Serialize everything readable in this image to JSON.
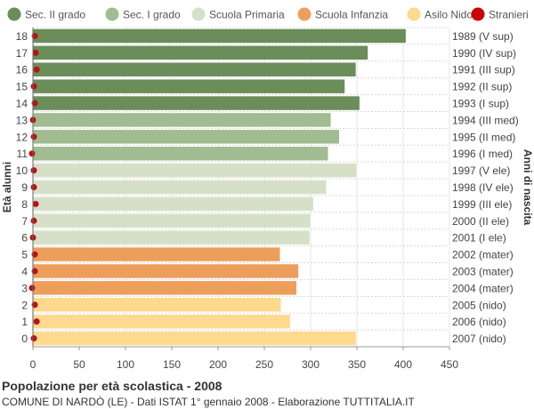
{
  "chart_data": {
    "type": "bar",
    "orientation": "horizontal",
    "categories": [
      "18",
      "17",
      "16",
      "15",
      "14",
      "13",
      "12",
      "11",
      "10",
      "9",
      "8",
      "7",
      "6",
      "5",
      "4",
      "3",
      "2",
      "1",
      "0"
    ],
    "birth_years": [
      "1989 (V sup)",
      "1990 (IV sup)",
      "1991 (III sup)",
      "1992 (II sup)",
      "1993 (I sup)",
      "1994 (III med)",
      "1995 (II med)",
      "1996 (I med)",
      "1997 (V ele)",
      "1998 (IV ele)",
      "1999 (III ele)",
      "2000 (II ele)",
      "2001 (I ele)",
      "2002 (mater)",
      "2003 (mater)",
      "2004 (mater)",
      "2005 (nido)",
      "2006 (nido)",
      "2007 (nido)"
    ],
    "values": [
      403,
      362,
      349,
      337,
      353,
      322,
      331,
      319,
      350,
      317,
      303,
      300,
      299,
      267,
      287,
      285,
      268,
      278,
      349
    ],
    "stranieri": [
      2,
      3,
      4,
      1,
      2,
      0,
      1,
      -1,
      1,
      1,
      3,
      1,
      0,
      2,
      2,
      -1,
      2,
      4,
      1
    ],
    "bar_groups": [
      "Sec. II grado",
      "Sec. II grado",
      "Sec. II grado",
      "Sec. II grado",
      "Sec. II grado",
      "Sec. I grado",
      "Sec. I grado",
      "Sec. I grado",
      "Scuola Primaria",
      "Scuola Primaria",
      "Scuola Primaria",
      "Scuola Primaria",
      "Scuola Primaria",
      "Scuola Infanzia",
      "Scuola Infanzia",
      "Scuola Infanzia",
      "Asilo Nido",
      "Asilo Nido",
      "Asilo Nido"
    ],
    "legend": [
      {
        "name": "Sec. II grado",
        "color": "#6a8d5a"
      },
      {
        "name": "Sec. I grado",
        "color": "#a0bc90"
      },
      {
        "name": "Scuola Primaria",
        "color": "#d6e0c8"
      },
      {
        "name": "Scuola Infanzia",
        "color": "#ec9f5c"
      },
      {
        "name": "Asilo Nido",
        "color": "#fed98e"
      },
      {
        "name": "Stranieri",
        "color": "#cc0000"
      }
    ],
    "xlim": [
      0,
      450
    ],
    "xticks": [
      0,
      50,
      100,
      150,
      200,
      250,
      300,
      350,
      400,
      450
    ],
    "ylabel": "Età alunni",
    "ylabel_right": "Anni di nascita",
    "grid": true,
    "legend_position": "top"
  },
  "footer": {
    "title": "Popolazione per età scolastica - 2008",
    "subtitle": "COMUNE DI NARDÒ (LE) - Dati ISTAT 1° gennaio 2008 - Elaborazione TUTTITALIA.IT"
  }
}
